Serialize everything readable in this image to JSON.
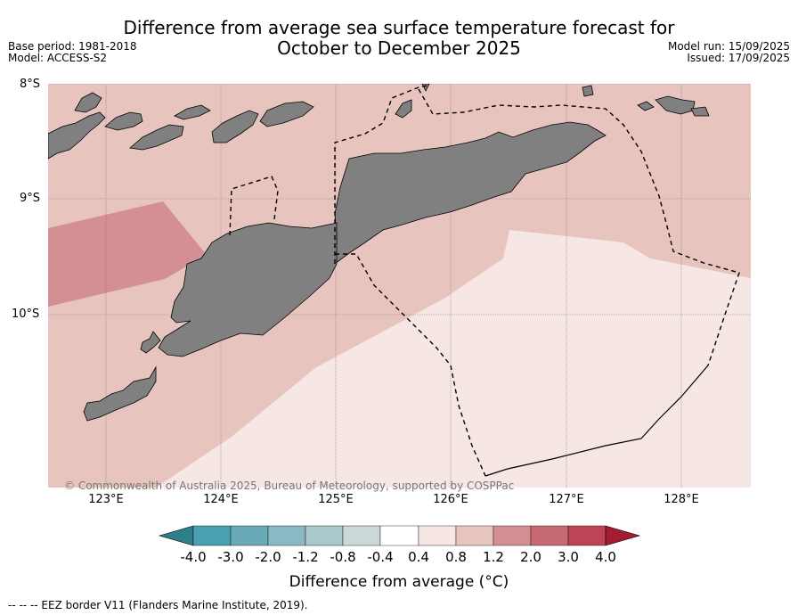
{
  "title": "Difference from average sea surface temperature forecast for October to December 2025",
  "title_line1": "Difference from average sea surface temperature forecast for",
  "title_line2": "October to December 2025",
  "base_period": "Base period: 1981-2018",
  "model": "Model: ACCESS-S2",
  "model_run": "Model run: 15/09/2025",
  "issued": "Issued: 17/09/2025",
  "latitude_labels": [
    "8°S",
    "9°S",
    "10°S"
  ],
  "longitude_labels": [
    "123°E",
    "124°E",
    "125°E",
    "126°E",
    "127°E",
    "128°E"
  ],
  "copyright": "© Commonwealth of Australia 2025, Bureau of Meteorology, supported by COSPPac",
  "colorbar": {
    "ticks": [
      "-4.0",
      "-3.0",
      "-2.0",
      "-1.2",
      "-0.8",
      "-0.4",
      "0.4",
      "0.8",
      "1.2",
      "2.0",
      "3.0",
      "4.0"
    ],
    "colors": [
      "#2e7f89",
      "#4aa0ae",
      "#6aa9b7",
      "#8ab8c3",
      "#a9c8cc",
      "#cad8d9",
      "#ffffff",
      "#f6e6e4",
      "#e8c4bf",
      "#d48f95",
      "#c86a73",
      "#bc4454",
      "#a51c30"
    ],
    "label": "Difference from average (°C)"
  },
  "eez_note": "--  --  -- EEZ border V11 (Flanders Marine Institute, 2019).",
  "colors": {
    "land": "#808080",
    "anomaly_0.4_0.8": "#f6e6e4",
    "anomaly_0.8_1.2": "#e8c4bf",
    "anomaly_1.2_2.0": "#d48f95"
  }
}
